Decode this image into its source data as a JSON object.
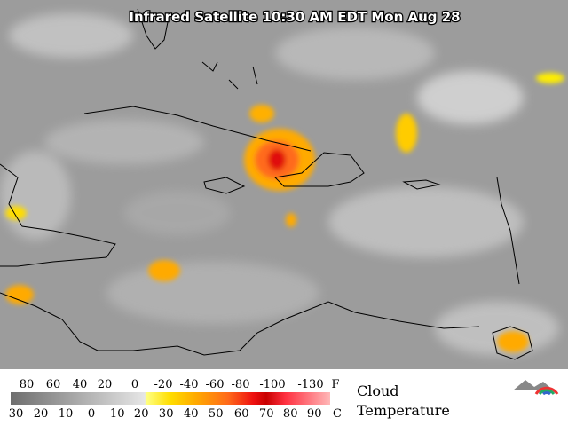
{
  "title": "Infrared Satellite 10:30 AM EDT Mon Aug 28",
  "legend": {
    "fahrenheit": {
      "labels": [
        80,
        60,
        40,
        20,
        0,
        -20,
        -40,
        -60,
        -80,
        -100,
        -130
      ],
      "unit": "F"
    },
    "celsius": {
      "labels": [
        30,
        20,
        10,
        0,
        -10,
        -20,
        -30,
        -40,
        -50,
        -60,
        -70,
        -80,
        -90
      ],
      "unit": "C"
    },
    "caption": [
      "Cloud",
      "Temperature"
    ]
  }
}
